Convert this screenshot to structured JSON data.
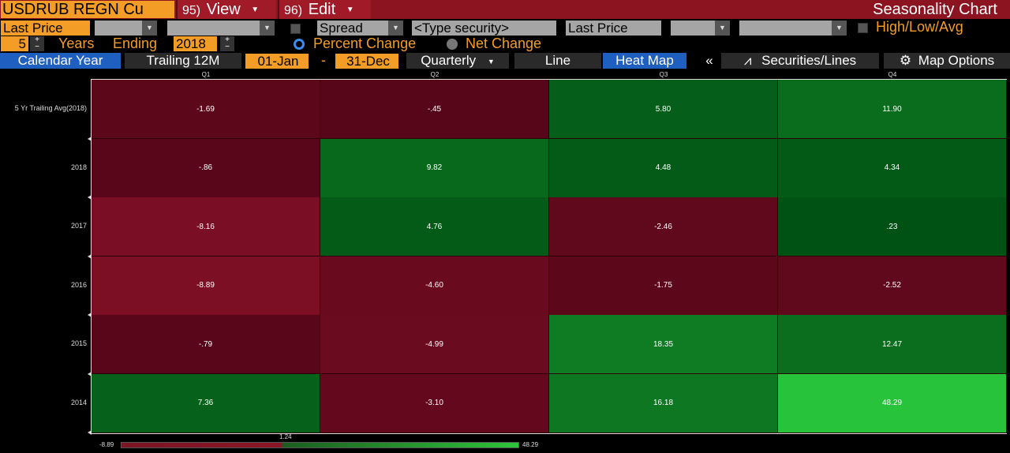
{
  "toolbar": {
    "ticker": "USDRUB REGN Cu",
    "view": {
      "num": "95)",
      "label": "View"
    },
    "edit": {
      "num": "96)",
      "label": "Edit"
    },
    "title": "Seasonality Chart"
  },
  "settings": {
    "field1": "Last Price",
    "spread": "Spread",
    "type_security": "<Type security>",
    "field2": "Last Price",
    "high_low_avg": "High/Low/Avg",
    "years": "5",
    "years_label": "Years",
    "ending_label": "Ending",
    "ending_year": "2018",
    "percent_change": "Percent Change",
    "net_change": "Net Change"
  },
  "tabs": {
    "calendar_year": "Calendar Year",
    "trailing": "Trailing 12M",
    "start_date": "01-Jan",
    "dash": "-",
    "end_date": "31-Dec",
    "period": "Quarterly",
    "line": "Line",
    "heat_map": "Heat Map",
    "collapse": "«",
    "securities_lines": "Securities/Lines",
    "map_options": "Map Options"
  },
  "colors": {
    "accent": "#f39c26",
    "title_bar": "#8b1420",
    "active_tab": "#1f5fbf"
  },
  "heatmap": {
    "columns": [
      "Q1",
      "Q2",
      "Q3",
      "Q4"
    ],
    "rows": [
      {
        "label": "5 Yr Trailing Avg(2018)",
        "values": [
          "-1.69",
          "-.45",
          "5.80",
          "11.90"
        ]
      },
      {
        "label": "2018",
        "values": [
          "-.86",
          "9.82",
          "4.48",
          "4.34"
        ]
      },
      {
        "label": "2017",
        "values": [
          "-8.16",
          "4.76",
          "-2.46",
          ".23"
        ]
      },
      {
        "label": "2016",
        "values": [
          "-8.89",
          "-4.60",
          "-1.75",
          "-2.52"
        ]
      },
      {
        "label": "2015",
        "values": [
          "-.79",
          "-4.99",
          "18.35",
          "12.47"
        ]
      },
      {
        "label": "2014",
        "values": [
          "7.36",
          "-3.10",
          "16.18",
          "48.29"
        ]
      }
    ]
  },
  "legend": {
    "min": "-8.89",
    "mid": "1.24",
    "max": "48.29"
  }
}
